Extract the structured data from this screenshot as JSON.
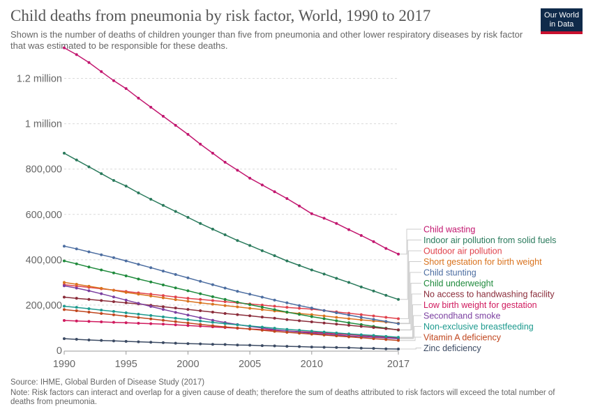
{
  "header": {
    "title": "Child deaths from pneumonia by risk factor, World, 1990 to 2017",
    "subtitle": "Shown is the number of deaths of children younger than five from pneumonia and other lower respiratory diseases by risk factor that was estimated to be responsible for these deaths.",
    "logo_line1": "Our World",
    "logo_line2": "in Data"
  },
  "footer": {
    "source": "Source: IHME, Global Burden of Disease Study (2017)",
    "note": "Note: Risk factors can interact and overlap for a given cause of death; therefore the sum of deaths attributed to risk factors will exceed the total number of deaths from pneumonia."
  },
  "chart_data": {
    "type": "line",
    "title": "Child deaths from pneumonia by risk factor, World, 1990 to 2017",
    "xlabel": "",
    "ylabel": "",
    "xlim": [
      1990,
      2017
    ],
    "ylim": [
      0,
      1300000
    ],
    "x_ticks": [
      {
        "value": 1990,
        "label": "1990"
      },
      {
        "value": 1995,
        "label": "1995"
      },
      {
        "value": 2000,
        "label": "2000"
      },
      {
        "value": 2005,
        "label": "2005"
      },
      {
        "value": 2010,
        "label": "2010"
      },
      {
        "value": 2017,
        "label": "2017"
      }
    ],
    "y_ticks": [
      {
        "value": 0,
        "label": "0"
      },
      {
        "value": 200000,
        "label": "200,000"
      },
      {
        "value": 400000,
        "label": "400,000"
      },
      {
        "value": 600000,
        "label": "600,000"
      },
      {
        "value": 800000,
        "label": "800,000"
      },
      {
        "value": 1000000,
        "label": "1 million"
      },
      {
        "value": 1200000,
        "label": "1.2 million"
      }
    ],
    "grid": "horizontal-dotted",
    "legend": "right",
    "x": [
      1990,
      1991,
      1992,
      1993,
      1994,
      1995,
      1996,
      1997,
      1998,
      1999,
      2000,
      2001,
      2002,
      2003,
      2004,
      2005,
      2006,
      2007,
      2008,
      2009,
      2010,
      2011,
      2012,
      2013,
      2014,
      2015,
      2016,
      2017
    ],
    "series": [
      {
        "name": "Child wasting",
        "color": "#c2176f",
        "values": [
          1335000,
          1305000,
          1270000,
          1230000,
          1190000,
          1155000,
          1113000,
          1073000,
          1033000,
          993000,
          953000,
          910000,
          870000,
          830000,
          795000,
          760000,
          730000,
          700000,
          670000,
          637000,
          603000,
          583000,
          560000,
          533000,
          507000,
          480000,
          450000,
          425000
        ]
      },
      {
        "name": "Indoor air pollution from solid fuels",
        "color": "#2a7a5c",
        "values": [
          870000,
          840000,
          810000,
          780000,
          750000,
          725000,
          695000,
          667000,
          640000,
          613000,
          587000,
          560000,
          535000,
          510000,
          485000,
          463000,
          440000,
          418000,
          395000,
          375000,
          355000,
          337000,
          318000,
          300000,
          280000,
          262000,
          243000,
          225000
        ]
      },
      {
        "name": "Outdoor air pollution",
        "color": "#e0424c",
        "values": [
          290000,
          284000,
          278000,
          272000,
          266000,
          260000,
          254000,
          248000,
          242000,
          236000,
          230000,
          225000,
          220000,
          215000,
          210000,
          205000,
          200000,
          195000,
          190000,
          186000,
          182000,
          176000,
          170000,
          164000,
          158000,
          152000,
          146000,
          140000
        ]
      },
      {
        "name": "Short gestation for birth weight",
        "color": "#d9731e",
        "values": [
          300000,
          292000,
          283000,
          274000,
          265000,
          256000,
          248000,
          240000,
          232000,
          224000,
          217000,
          210000,
          204000,
          198000,
          192000,
          186000,
          180000,
          174000,
          168000,
          163000,
          158000,
          152000,
          146000,
          140000,
          135000,
          130000,
          125000,
          120000
        ]
      },
      {
        "name": "Child stunting",
        "color": "#4d6ea1",
        "values": [
          460000,
          448000,
          435000,
          422000,
          409000,
          395000,
          380000,
          365000,
          350000,
          335000,
          320000,
          305000,
          290000,
          275000,
          261000,
          248000,
          235000,
          222000,
          210000,
          198000,
          187000,
          176000,
          166000,
          156000,
          146000,
          137000,
          128000,
          118000
        ]
      },
      {
        "name": "Child underweight",
        "color": "#1f8a3c",
        "values": [
          395000,
          382000,
          368000,
          355000,
          342000,
          329000,
          315000,
          302000,
          289000,
          276000,
          263000,
          250000,
          237000,
          225000,
          213000,
          202000,
          191000,
          180000,
          169000,
          159000,
          149000,
          140000,
          131000,
          122000,
          114000,
          106000,
          98000,
          90000
        ]
      },
      {
        "name": "No access to handwashing facility",
        "color": "#8a2c3a",
        "values": [
          235000,
          230000,
          225000,
          220000,
          215000,
          210000,
          205000,
          199000,
          193000,
          187000,
          181000,
          175000,
          169000,
          163000,
          158000,
          153000,
          147000,
          142000,
          136000,
          131000,
          126000,
          121000,
          116000,
          111000,
          106000,
          101000,
          96000,
          91000
        ]
      },
      {
        "name": "Low birth weight for gestation",
        "color": "#d01a5e",
        "values": [
          132000,
          130000,
          128000,
          126000,
          124000,
          122000,
          120000,
          118000,
          116000,
          113000,
          110000,
          107000,
          104000,
          101000,
          98000,
          95000,
          92000,
          89000,
          86000,
          83000,
          80000,
          77000,
          73000,
          70000,
          66000,
          62000,
          58000,
          55000
        ]
      },
      {
        "name": "Secondhand smoke",
        "color": "#7b3fa0",
        "values": [
          285000,
          275000,
          263000,
          250000,
          236000,
          222000,
          208000,
          194000,
          181000,
          168000,
          156000,
          144000,
          133000,
          123000,
          114000,
          106000,
          99000,
          92000,
          86000,
          81000,
          76000,
          72000,
          68000,
          64000,
          61000,
          58000,
          55000,
          52000
        ]
      },
      {
        "name": "Non-exclusive breastfeeding",
        "color": "#1d9a8e",
        "values": [
          195000,
          190000,
          184000,
          178000,
          172000,
          166000,
          160000,
          154000,
          148000,
          142000,
          136000,
          130000,
          124000,
          118000,
          113000,
          108000,
          103000,
          98000,
          93000,
          89000,
          85000,
          81000,
          77000,
          73000,
          69000,
          66000,
          62000,
          58000
        ]
      },
      {
        "name": "Vitamin A deficiency",
        "color": "#c0461e",
        "values": [
          180000,
          175000,
          169000,
          163000,
          157000,
          151000,
          145000,
          139000,
          133000,
          127000,
          121000,
          115000,
          109000,
          104000,
          99000,
          94000,
          89000,
          84000,
          80000,
          76000,
          72000,
          68000,
          64000,
          60000,
          56000,
          52000,
          48000,
          44000
        ]
      },
      {
        "name": "Zinc deficiency",
        "color": "#3b4a63",
        "values": [
          52000,
          49000,
          46000,
          44000,
          42000,
          40000,
          38000,
          36000,
          34000,
          32000,
          30000,
          29000,
          27000,
          26000,
          24000,
          23000,
          21000,
          20000,
          18000,
          17000,
          15000,
          14000,
          13000,
          12000,
          10000,
          9000,
          7000,
          6000
        ]
      }
    ]
  }
}
